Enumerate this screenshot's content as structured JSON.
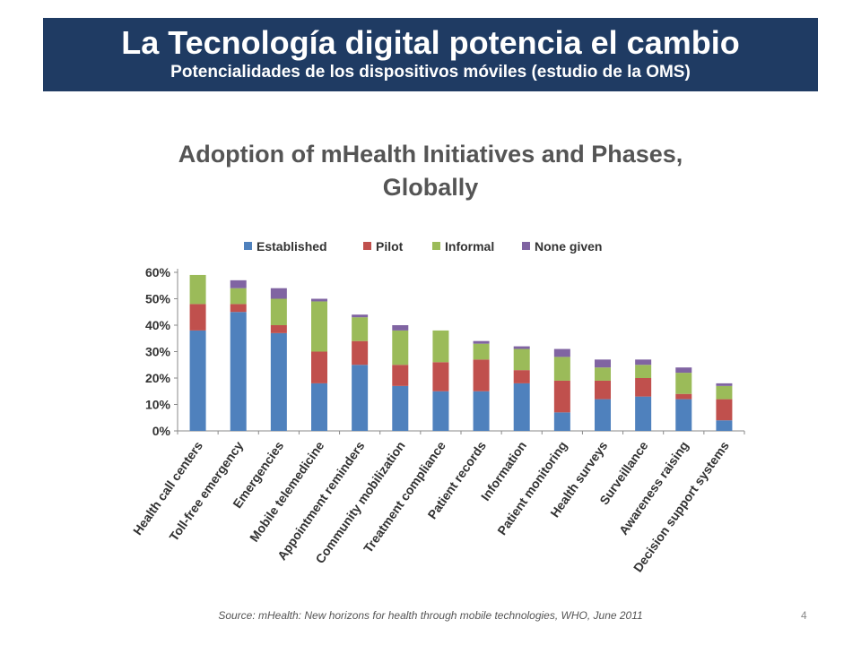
{
  "slide": {
    "title": "La Tecnología digital potencia el cambio",
    "subtitle": "Potencialidades de los dispositivos móviles (estudio de la OMS)",
    "source": "Source: mHealth: New horizons for health through mobile technologies, WHO, June 2011",
    "page_number": "4"
  },
  "chart_data": {
    "type": "bar",
    "stacked": true,
    "title": "Adoption of mHealth Initiatives and Phases, Globally",
    "title_lines": [
      "Adoption of mHealth Initiatives and Phases,",
      "Globally"
    ],
    "legend_position": "top",
    "ylim": [
      0,
      60
    ],
    "yticks": [
      0,
      10,
      20,
      30,
      40,
      50,
      60
    ],
    "ytick_labels": [
      "0%",
      "10%",
      "20%",
      "30%",
      "40%",
      "50%",
      "60%"
    ],
    "grid": false,
    "categories": [
      "Health call centers",
      "Toll-free emergency",
      "Emergencies",
      "Mobile telemedicine",
      "Appointment reminders",
      "Community mobilization",
      "Treatment compliance",
      "Patient records",
      "Information",
      "Patient monitoring",
      "Health surveys",
      "Surveillance",
      "Awareness raising",
      "Decision support systems"
    ],
    "series": [
      {
        "name": "Established",
        "color": "#4f81bd",
        "values": [
          38,
          45,
          37,
          18,
          25,
          17,
          15,
          15,
          18,
          7,
          12,
          13,
          12,
          4
        ]
      },
      {
        "name": "Pilot",
        "color": "#c0504d",
        "values": [
          10,
          3,
          3,
          12,
          9,
          8,
          11,
          12,
          5,
          12,
          7,
          7,
          2,
          8
        ]
      },
      {
        "name": "Informal",
        "color": "#9bbb59",
        "values": [
          11,
          6,
          10,
          19,
          9,
          13,
          12,
          6,
          8,
          9,
          5,
          5,
          8,
          5
        ]
      },
      {
        "name": "None given",
        "color": "#8064a2",
        "values": [
          0,
          3,
          4,
          1,
          1,
          2,
          0,
          1,
          1,
          3,
          3,
          2,
          2,
          1
        ]
      }
    ]
  }
}
